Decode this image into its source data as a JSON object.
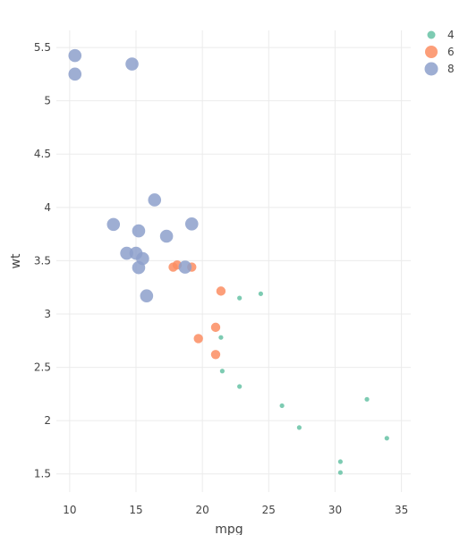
{
  "chart_data": {
    "type": "scatter",
    "xlabel": "mpg",
    "ylabel": "wt",
    "xlim": [
      9.0,
      35.7
    ],
    "ylim": [
      1.33,
      5.66
    ],
    "x_ticks": [
      10,
      15,
      20,
      25,
      30,
      35
    ],
    "y_ticks": [
      1.5,
      2,
      2.5,
      3,
      3.5,
      4,
      4.5,
      5,
      5.5
    ],
    "grid": true,
    "legend_position": "top-right",
    "colors": {
      "4": "#66c2a5",
      "6": "#fc8d62",
      "8": "#8da0cb"
    },
    "series": [
      {
        "name": "4",
        "points": [
          [
            22.8,
            2.32
          ],
          [
            24.4,
            3.19
          ],
          [
            22.8,
            3.15
          ],
          [
            32.4,
            2.2
          ],
          [
            30.4,
            1.615
          ],
          [
            33.9,
            1.835
          ],
          [
            21.5,
            2.465
          ],
          [
            27.3,
            1.935
          ],
          [
            26.0,
            2.14
          ],
          [
            30.4,
            1.513
          ],
          [
            21.4,
            2.78
          ]
        ]
      },
      {
        "name": "6",
        "points": [
          [
            21.0,
            2.62
          ],
          [
            21.0,
            2.875
          ],
          [
            21.4,
            3.215
          ],
          [
            18.1,
            3.46
          ],
          [
            19.2,
            3.44
          ],
          [
            17.8,
            3.44
          ],
          [
            19.7,
            2.77
          ]
        ]
      },
      {
        "name": "8",
        "points": [
          [
            18.7,
            3.44
          ],
          [
            14.3,
            3.57
          ],
          [
            16.4,
            4.07
          ],
          [
            17.3,
            3.73
          ],
          [
            15.2,
            3.78
          ],
          [
            10.4,
            5.25
          ],
          [
            10.4,
            5.424
          ],
          [
            14.7,
            5.345
          ],
          [
            15.5,
            3.52
          ],
          [
            15.2,
            3.435
          ],
          [
            13.3,
            3.84
          ],
          [
            19.2,
            3.845
          ],
          [
            15.8,
            3.17
          ],
          [
            15.0,
            3.57
          ]
        ]
      }
    ]
  }
}
